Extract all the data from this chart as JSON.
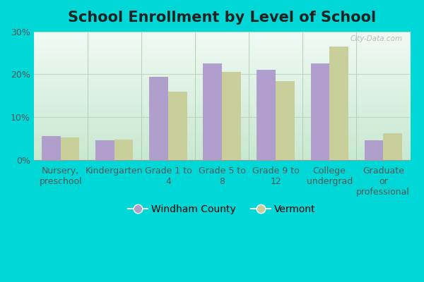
{
  "title": "School Enrollment by Level of School",
  "categories": [
    "Nursery,\npreschool",
    "Kindergarten",
    "Grade 1 to\n4",
    "Grade 5 to\n8",
    "Grade 9 to\n12",
    "College\nundergrad",
    "Graduate\nor\nprofessional"
  ],
  "windham_values": [
    5.5,
    4.5,
    19.5,
    22.5,
    21.0,
    22.5,
    4.5
  ],
  "vermont_values": [
    5.2,
    4.7,
    16.0,
    20.5,
    18.5,
    26.5,
    6.2
  ],
  "windham_color": "#b09fcc",
  "vermont_color": "#c8cf9a",
  "outer_bg_color": "#00d8d8",
  "plot_bg_top": "#f0faf5",
  "plot_bg_bottom": "#c8e8d0",
  "grid_color": "#c0d8c0",
  "ylim": [
    0,
    30
  ],
  "yticks": [
    0,
    10,
    20,
    30
  ],
  "ytick_labels": [
    "0%",
    "10%",
    "20%",
    "30%"
  ],
  "legend_labels": [
    "Windham County",
    "Vermont"
  ],
  "title_fontsize": 15,
  "tick_fontsize": 9,
  "legend_fontsize": 10,
  "bar_width": 0.35,
  "watermark": "City-Data.com"
}
